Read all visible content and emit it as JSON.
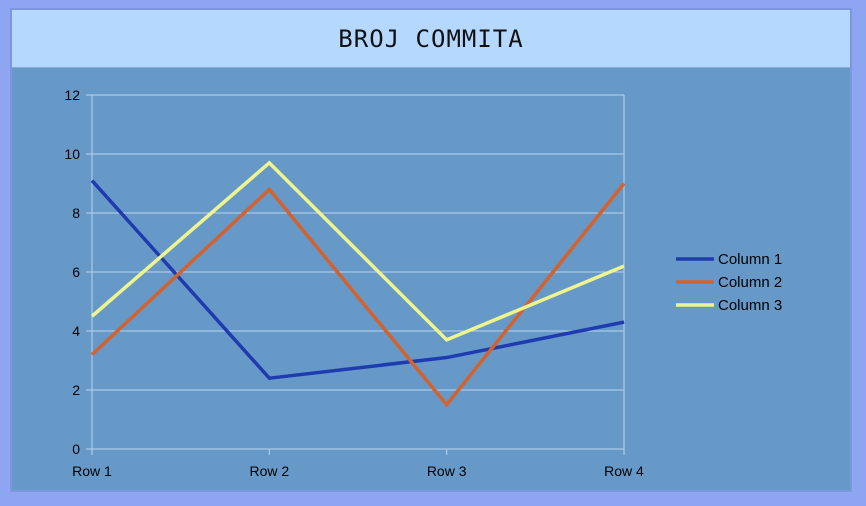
{
  "chart_data": {
    "type": "line",
    "title": "BROJ COMMITA",
    "categories": [
      "Row 1",
      "Row 2",
      "Row 3",
      "Row 4"
    ],
    "ylim": [
      0,
      12
    ],
    "yticks": [
      0,
      2,
      4,
      6,
      8,
      10,
      12
    ],
    "grid": true,
    "legend_position": "right",
    "series": [
      {
        "name": "Column 1",
        "color": "#1f3bb0",
        "values": [
          9.1,
          2.4,
          3.1,
          4.3
        ]
      },
      {
        "name": "Column 2",
        "color": "#d2622e",
        "values": [
          3.2,
          8.8,
          1.5,
          9.0
        ]
      },
      {
        "name": "Column 3",
        "color": "#eef58c",
        "values": [
          4.5,
          9.7,
          3.7,
          6.2
        ]
      }
    ],
    "colors": {
      "background": "#6699c8",
      "title_band": "#b5d8ff",
      "grid": "#b9d3f0",
      "outer": "#8ea6f2"
    }
  }
}
